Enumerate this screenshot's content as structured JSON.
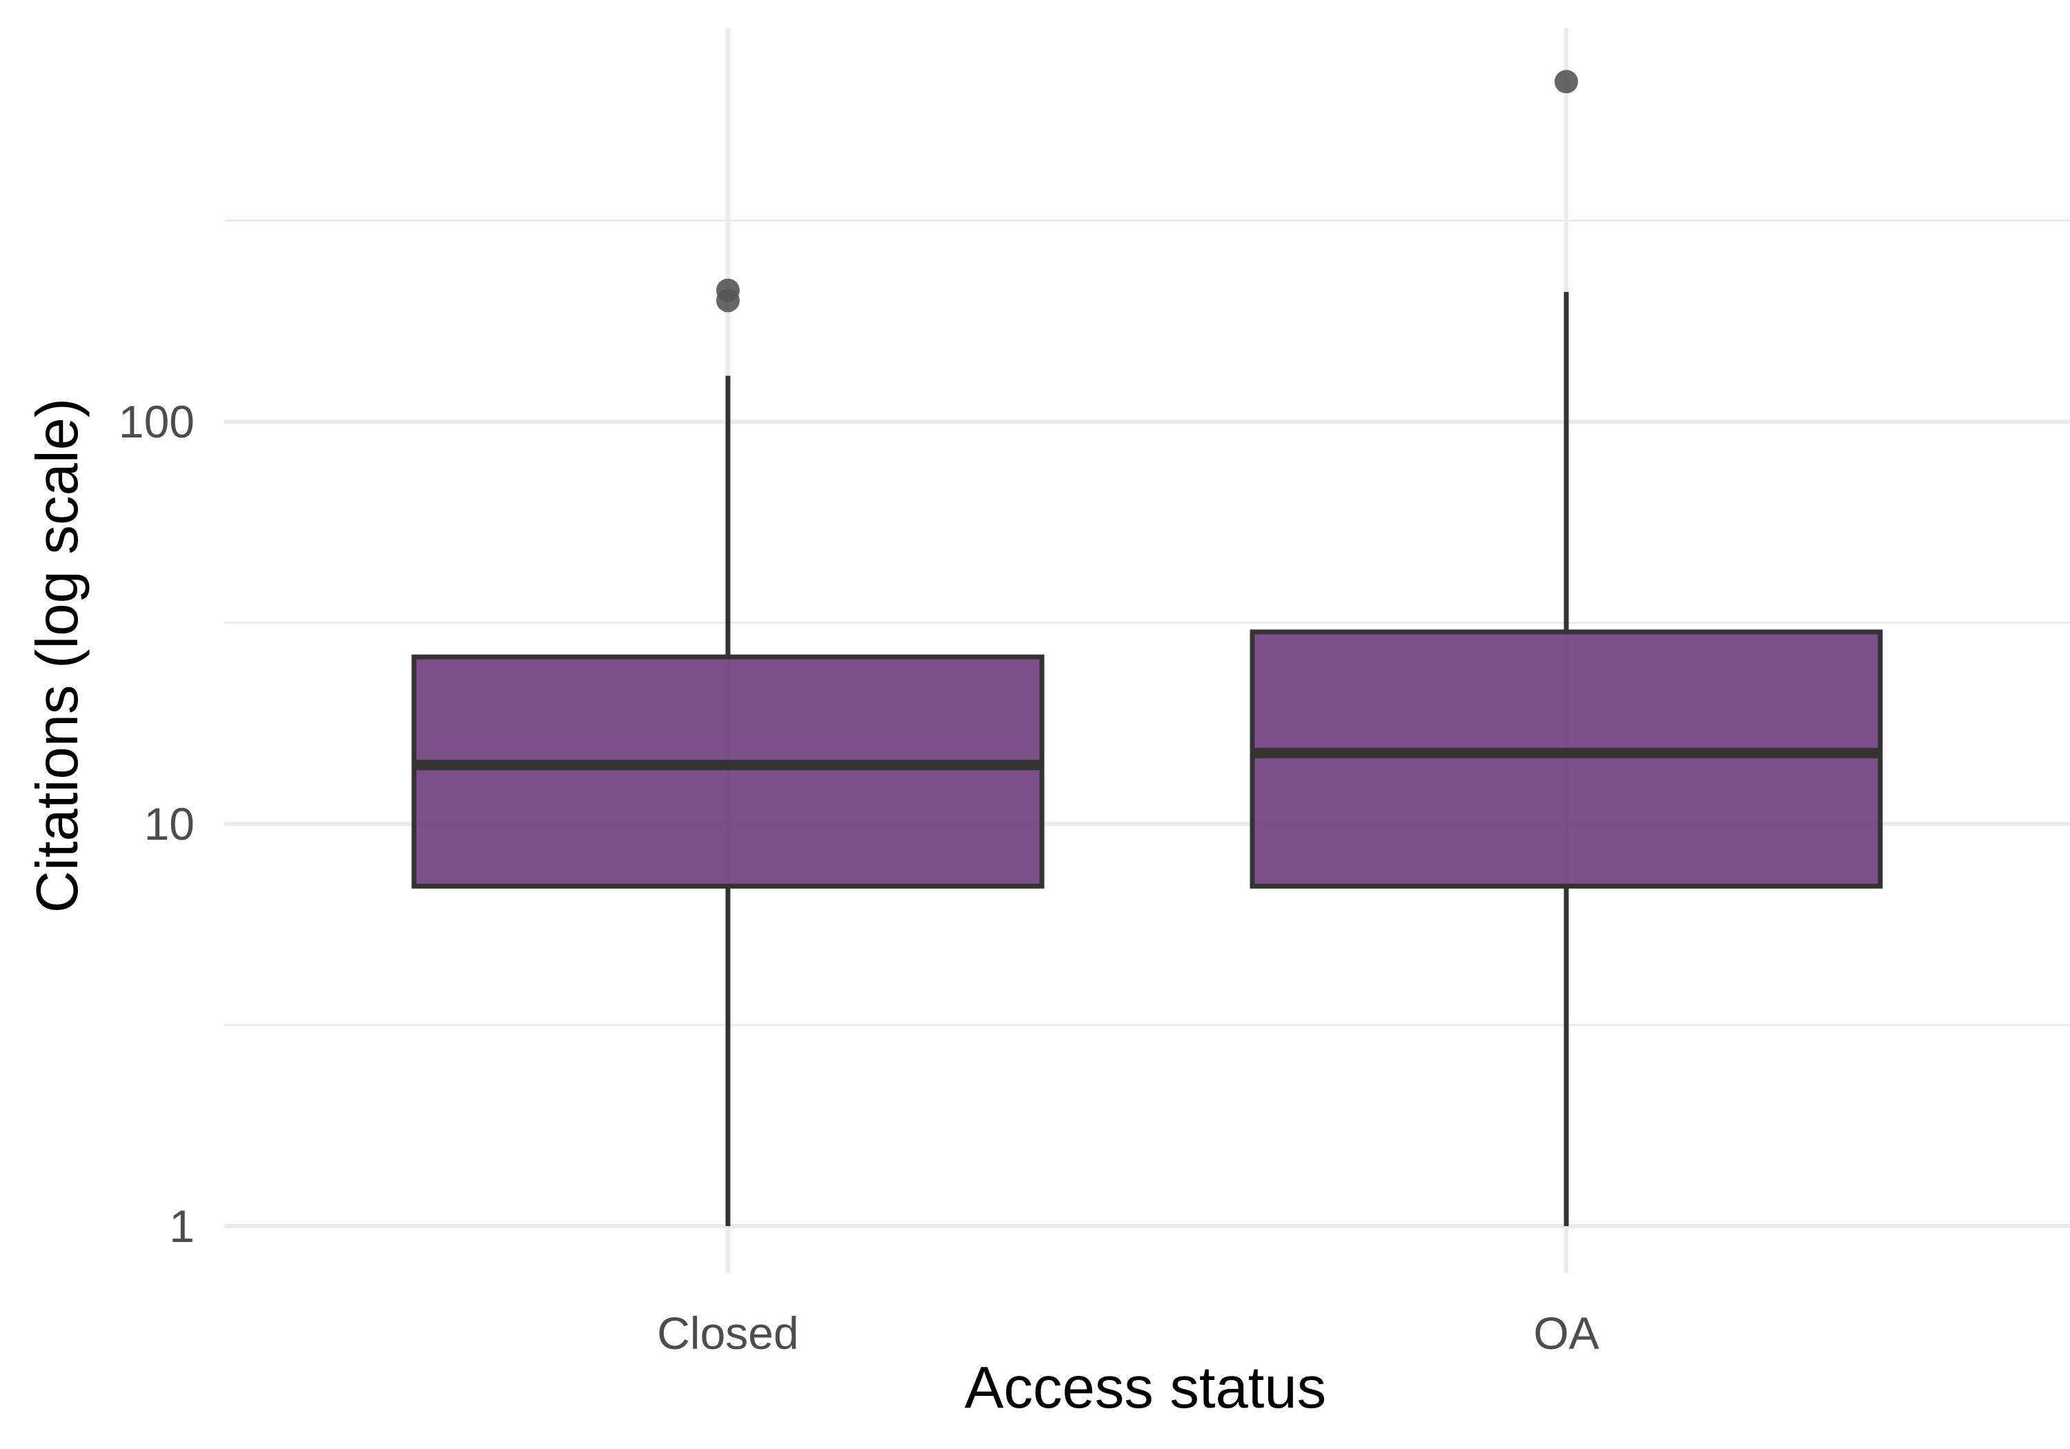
{
  "chart_data": {
    "type": "boxplot",
    "title": "",
    "xlabel": "Access status",
    "ylabel": "Citations (log scale)",
    "y_scale": "log10",
    "ylim": [
      0.5,
      1500
    ],
    "y_ticks": [
      1,
      10,
      100
    ],
    "y_tick_labels": [
      "1",
      "10",
      "100"
    ],
    "y_minor_gridlines": [
      3.16,
      31.6,
      316
    ],
    "grid": true,
    "legend": "none",
    "fill_color": "#6f3c7c",
    "line_color": "#333333",
    "outlier_color": "#555555",
    "grid_color": "#ebebeb",
    "categories": [
      "Closed",
      "OA"
    ],
    "boxes": [
      {
        "category": "Closed",
        "whisker_low": 1,
        "q1": 7,
        "median": 14,
        "q3": 26,
        "whisker_high": 130,
        "outliers": [
          200,
          212
        ]
      },
      {
        "category": "OA",
        "whisker_low": 1,
        "q1": 7,
        "median": 15,
        "q3": 30,
        "whisker_high": 210,
        "outliers": [
          700
        ]
      }
    ]
  }
}
